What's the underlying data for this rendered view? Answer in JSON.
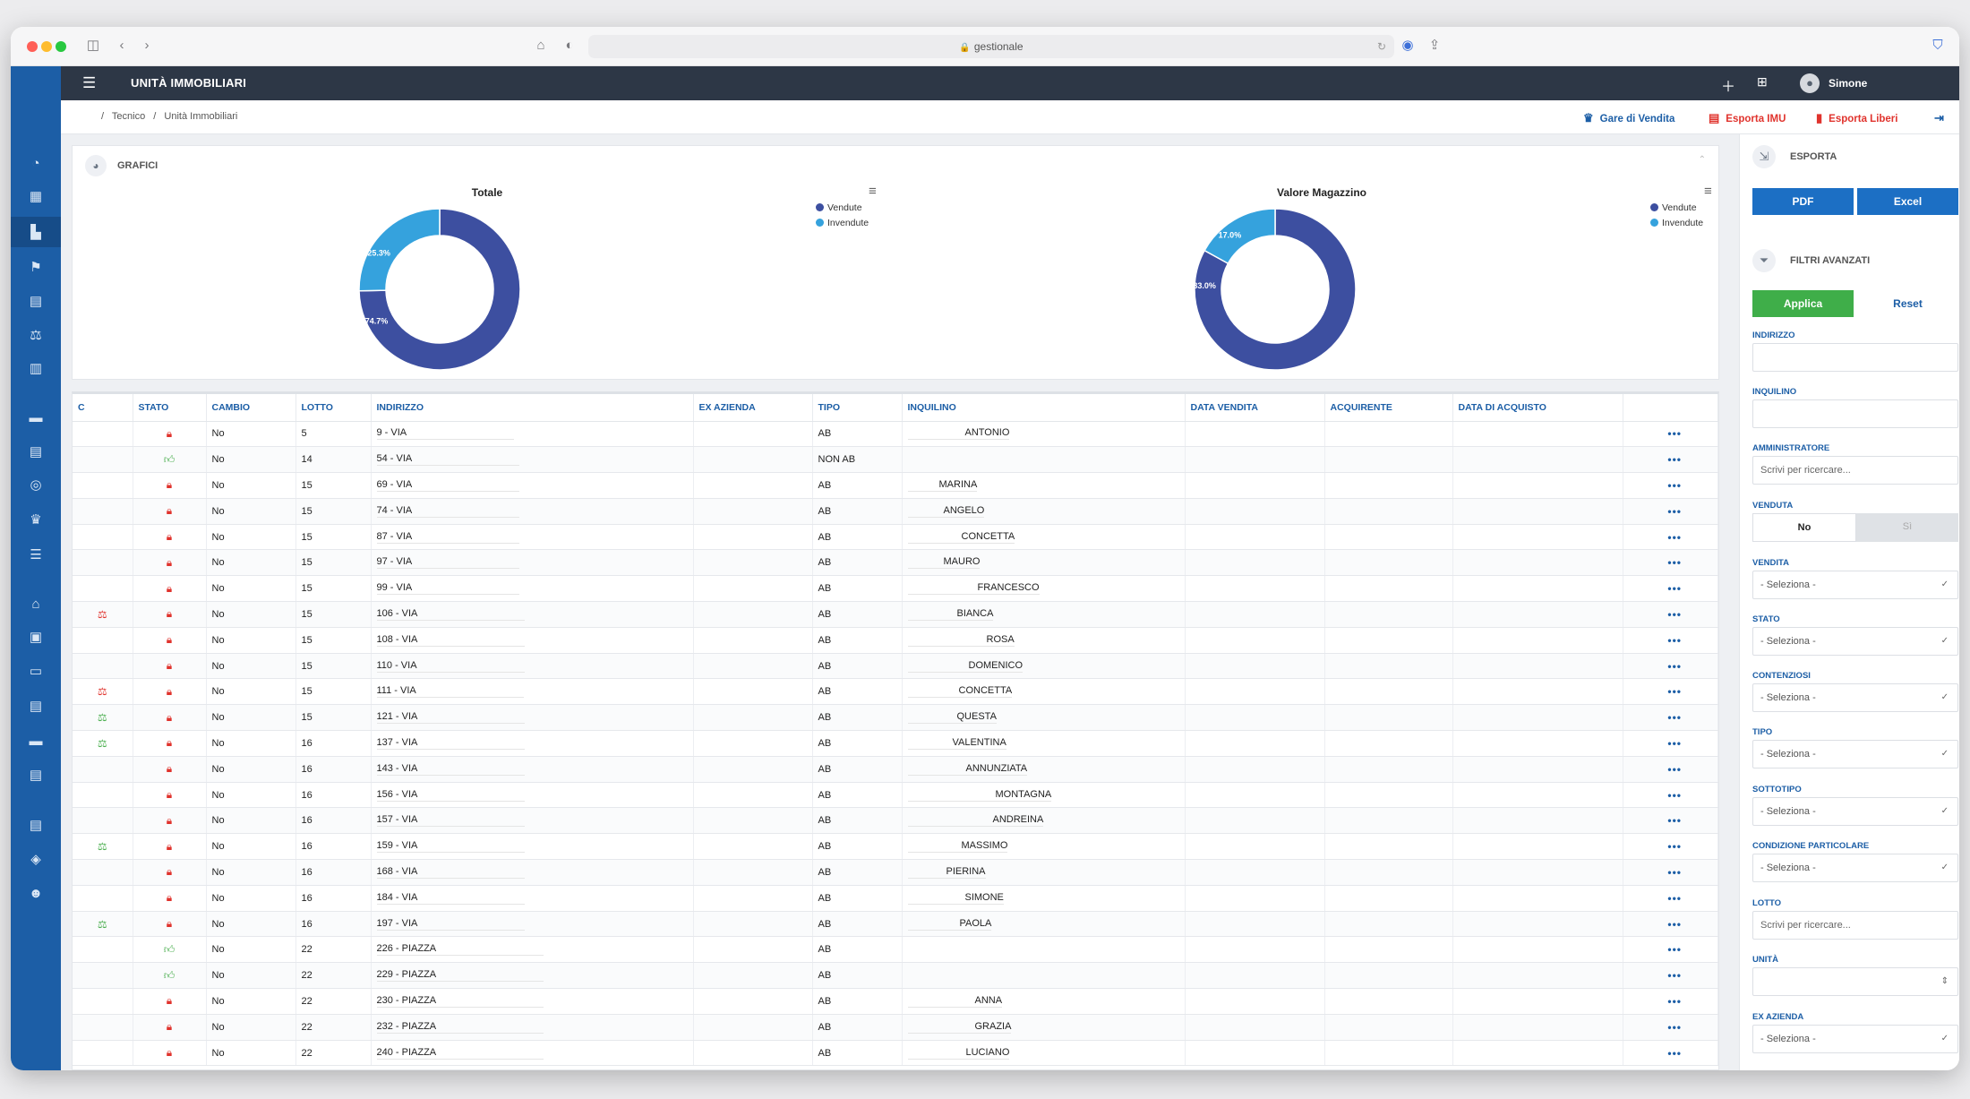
{
  "browser": {
    "url": "gestionale"
  },
  "topbar": {
    "title": "UNITÀ IMMOBILIARI",
    "user": "Simone"
  },
  "breadcrumb": {
    "sep": "/",
    "items": [
      "Tecnico",
      "Unità Immobiliari"
    ]
  },
  "actions": {
    "gare": "Gare di Vendita",
    "imu": "Esporta IMU",
    "liberi": "Esporta Liberi"
  },
  "graphs": {
    "heading": "GRAFICI",
    "legend": [
      "Vendute",
      "Invendute"
    ]
  },
  "chart_data": [
    {
      "type": "pie",
      "title": "Totale",
      "categories": [
        "Vendute",
        "Invendute"
      ],
      "values": [
        74.7,
        25.3
      ],
      "labels": [
        "74.7%",
        "25.3%"
      ],
      "colors": [
        "#3d4fa0",
        "#35a2dd"
      ],
      "legend_position": "top-right"
    },
    {
      "type": "pie",
      "title": "Valore Magazzino",
      "categories": [
        "Vendute",
        "Invendute"
      ],
      "values": [
        83.0,
        17.0
      ],
      "labels": [
        "83.0%",
        "17.0%"
      ],
      "colors": [
        "#3d4fa0",
        "#35a2dd"
      ],
      "legend_position": "top-right"
    }
  ],
  "table": {
    "headers": [
      "C",
      "STATO",
      "CAMBIO",
      "LOTTO",
      "INDIRIZZO",
      "EX AZIENDA",
      "TIPO",
      "INQUILINO",
      "DATA VENDITA",
      "ACQUIRENTE",
      "DATA DI ACQUISTO",
      ""
    ],
    "rows": [
      {
        "c": "",
        "stato": "lock",
        "cambio": "No",
        "lotto": "5",
        "indirizzo": "9 - VIA",
        "tipo": "AB",
        "inquilino": "ANTONIO",
        "ind_pad": 64
      },
      {
        "c": "",
        "stato": "thumb",
        "cambio": "No",
        "lotto": "14",
        "indirizzo": "54 - VIA",
        "tipo": "NON AB",
        "inquilino": "",
        "ind_pad": 0
      },
      {
        "c": "",
        "stato": "lock",
        "cambio": "No",
        "lotto": "15",
        "indirizzo": "69 - VIA",
        "tipo": "AB",
        "inquilino": "MARINA",
        "ind_pad": 35
      },
      {
        "c": "",
        "stato": "lock",
        "cambio": "No",
        "lotto": "15",
        "indirizzo": "74 - VIA",
        "tipo": "AB",
        "inquilino": "ANGELO",
        "ind_pad": 40
      },
      {
        "c": "",
        "stato": "lock",
        "cambio": "No",
        "lotto": "15",
        "indirizzo": "87 - VIA",
        "tipo": "AB",
        "inquilino": "CONCETTA",
        "ind_pad": 60
      },
      {
        "c": "",
        "stato": "lock",
        "cambio": "No",
        "lotto": "15",
        "indirizzo": "97 - VIA",
        "tipo": "AB",
        "inquilino": "MAURO",
        "ind_pad": 40
      },
      {
        "c": "",
        "stato": "lock",
        "cambio": "No",
        "lotto": "15",
        "indirizzo": "99 - VIA",
        "tipo": "AB",
        "inquilino": "FRANCESCO",
        "ind_pad": 78
      },
      {
        "c": "red",
        "stato": "lock",
        "cambio": "No",
        "lotto": "15",
        "indirizzo": "106 - VIA",
        "tipo": "AB",
        "inquilino": "BIANCA",
        "ind_pad": 55
      },
      {
        "c": "",
        "stato": "lock",
        "cambio": "No",
        "lotto": "15",
        "indirizzo": "108 - VIA",
        "tipo": "AB",
        "inquilino": "ROSA",
        "ind_pad": 88
      },
      {
        "c": "",
        "stato": "lock",
        "cambio": "No",
        "lotto": "15",
        "indirizzo": "110 - VIA",
        "tipo": "AB",
        "inquilino": "DOMENICO",
        "ind_pad": 68
      },
      {
        "c": "red",
        "stato": "lock",
        "cambio": "No",
        "lotto": "15",
        "indirizzo": "111 - VIA",
        "tipo": "AB",
        "inquilino": "CONCETTA",
        "ind_pad": 57
      },
      {
        "c": "green",
        "stato": "lock",
        "cambio": "No",
        "lotto": "15",
        "indirizzo": "121 - VIA",
        "tipo": "AB",
        "inquilino": "QUESTA",
        "ind_pad": 55
      },
      {
        "c": "green",
        "stato": "lock",
        "cambio": "No",
        "lotto": "16",
        "indirizzo": "137 - VIA",
        "tipo": "AB",
        "inquilino": "VALENTINA",
        "ind_pad": 50
      },
      {
        "c": "",
        "stato": "lock",
        "cambio": "No",
        "lotto": "16",
        "indirizzo": "143 - VIA",
        "tipo": "AB",
        "inquilino": "ANNUNZIATA",
        "ind_pad": 65
      },
      {
        "c": "",
        "stato": "lock",
        "cambio": "No",
        "lotto": "16",
        "indirizzo": "156 - VIA",
        "tipo": "AB",
        "inquilino": "MONTAGNA",
        "ind_pad": 98
      },
      {
        "c": "",
        "stato": "lock",
        "cambio": "No",
        "lotto": "16",
        "indirizzo": "157 - VIA",
        "tipo": "AB",
        "inquilino": "ANDREINA",
        "ind_pad": 95
      },
      {
        "c": "green",
        "stato": "lock",
        "cambio": "No",
        "lotto": "16",
        "indirizzo": "159 - VIA",
        "tipo": "AB",
        "inquilino": "MASSIMO",
        "ind_pad": 60
      },
      {
        "c": "",
        "stato": "lock",
        "cambio": "No",
        "lotto": "16",
        "indirizzo": "168 - VIA",
        "tipo": "AB",
        "inquilino": "PIERINA",
        "ind_pad": 43
      },
      {
        "c": "",
        "stato": "lock",
        "cambio": "No",
        "lotto": "16",
        "indirizzo": "184 - VIA",
        "tipo": "AB",
        "inquilino": "SIMONE",
        "ind_pad": 64
      },
      {
        "c": "green",
        "stato": "lock",
        "cambio": "No",
        "lotto": "16",
        "indirizzo": "197 - VIA",
        "tipo": "AB",
        "inquilino": "PAOLA",
        "ind_pad": 58
      },
      {
        "c": "",
        "stato": "thumb",
        "cambio": "No",
        "lotto": "22",
        "indirizzo": "226 - PIAZZA",
        "tipo": "AB",
        "inquilino": "",
        "ind_pad": 0
      },
      {
        "c": "",
        "stato": "thumb",
        "cambio": "No",
        "lotto": "22",
        "indirizzo": "229 - PIAZZA",
        "tipo": "AB",
        "inquilino": "",
        "ind_pad": 0
      },
      {
        "c": "",
        "stato": "lock",
        "cambio": "No",
        "lotto": "22",
        "indirizzo": "230 - PIAZZA",
        "tipo": "AB",
        "inquilino": "ANNA",
        "ind_pad": 75
      },
      {
        "c": "",
        "stato": "lock",
        "cambio": "No",
        "lotto": "22",
        "indirizzo": "232 - PIAZZA",
        "tipo": "AB",
        "inquilino": "GRAZIA",
        "ind_pad": 75
      },
      {
        "c": "",
        "stato": "lock",
        "cambio": "No",
        "lotto": "22",
        "indirizzo": "240 - PIAZZA",
        "tipo": "AB",
        "inquilino": "LUCIANO",
        "ind_pad": 65
      }
    ]
  },
  "panel": {
    "esporta": "ESPORTA",
    "pdf": "PDF",
    "excel": "Excel",
    "filtri": "FILTRI AVANZATI",
    "applica": "Applica",
    "reset": "Reset",
    "labels": {
      "indirizzo": "INDIRIZZO",
      "inquilino": "INQUILINO",
      "amministratore": "AMMINISTRATORE",
      "venduta": "VENDUTA",
      "vendita": "VENDITA",
      "stato": "STATO",
      "contenziosi": "CONTENZIOSI",
      "tipo": "TIPO",
      "sottotipo": "SOTTOTIPO",
      "condizione": "CONDIZIONE PARTICOLARE",
      "lotto": "LOTTO",
      "unita": "UNITÀ",
      "ex_azienda": "EX AZIENDA"
    },
    "search_placeholder": "Scrivi per ricercare...",
    "select_placeholder": "- Seleziona -",
    "venduta_no": "No",
    "venduta_si": "Sì"
  }
}
